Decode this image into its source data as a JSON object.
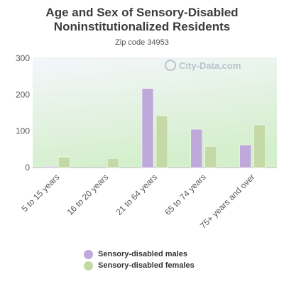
{
  "title": "Age and Sex of Sensory-Disabled Noninstitutionalized Residents",
  "subtitle": "Zip code 34953",
  "watermark": "City-Data.com",
  "colors": {
    "males": "#bfa8da",
    "females": "#c5d9a6",
    "plot_bg_top": "#f3f6fa",
    "plot_bg_bottom": "#d6f0d0"
  },
  "chart_data": {
    "type": "bar",
    "categories": [
      "5 to 15 years",
      "16 to 20 years",
      "21 to 64 years",
      "65 to 74 years",
      "75+ years and over"
    ],
    "series": [
      {
        "name": "Sensory-disabled males",
        "values": [
          3,
          0,
          217,
          105,
          62
        ]
      },
      {
        "name": "Sensory-disabled females",
        "values": [
          29,
          25,
          142,
          58,
          117
        ]
      }
    ],
    "ylim": [
      0,
      300
    ],
    "yticks": [
      "0",
      "100",
      "200",
      "300"
    ],
    "legend": "bottom",
    "grid": true
  }
}
